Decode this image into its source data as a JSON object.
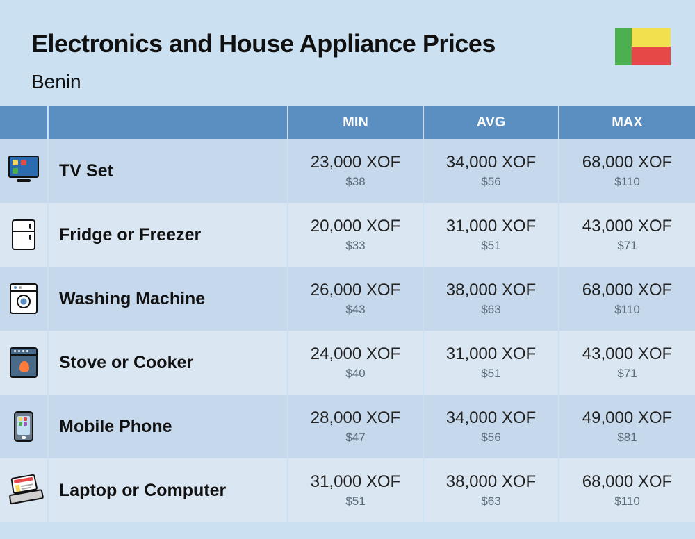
{
  "header": {
    "title": "Electronics and House Appliance Prices",
    "country": "Benin"
  },
  "flag": {
    "colors": {
      "green": "#4caf50",
      "yellow": "#f3e04f",
      "red": "#e64848"
    }
  },
  "table": {
    "type": "table",
    "columns": [
      "MIN",
      "AVG",
      "MAX"
    ],
    "header_bg": "#5b8fc2",
    "header_text_color": "#ffffff",
    "row_bg_odd": "#c6d9ec",
    "row_bg_even": "#dae7f2",
    "border_color": "#cbe0f0",
    "xof_text_color": "#222222",
    "usd_text_color": "#5b6b7a",
    "name_text_color": "#111111",
    "xof_fontsize": 24,
    "usd_fontsize": 17,
    "name_fontsize": 25,
    "header_fontsize": 20,
    "rows": [
      {
        "icon": "tv-icon",
        "name": "TV Set",
        "min": {
          "xof": "23,000 XOF",
          "usd": "$38"
        },
        "avg": {
          "xof": "34,000 XOF",
          "usd": "$56"
        },
        "max": {
          "xof": "68,000 XOF",
          "usd": "$110"
        }
      },
      {
        "icon": "fridge-icon",
        "name": "Fridge or Freezer",
        "min": {
          "xof": "20,000 XOF",
          "usd": "$33"
        },
        "avg": {
          "xof": "31,000 XOF",
          "usd": "$51"
        },
        "max": {
          "xof": "43,000 XOF",
          "usd": "$71"
        }
      },
      {
        "icon": "washing-machine-icon",
        "name": "Washing Machine",
        "min": {
          "xof": "26,000 XOF",
          "usd": "$43"
        },
        "avg": {
          "xof": "38,000 XOF",
          "usd": "$63"
        },
        "max": {
          "xof": "68,000 XOF",
          "usd": "$110"
        }
      },
      {
        "icon": "stove-icon",
        "name": "Stove or Cooker",
        "min": {
          "xof": "24,000 XOF",
          "usd": "$40"
        },
        "avg": {
          "xof": "31,000 XOF",
          "usd": "$51"
        },
        "max": {
          "xof": "43,000 XOF",
          "usd": "$71"
        }
      },
      {
        "icon": "phone-icon",
        "name": "Mobile Phone",
        "min": {
          "xof": "28,000 XOF",
          "usd": "$47"
        },
        "avg": {
          "xof": "34,000 XOF",
          "usd": "$56"
        },
        "max": {
          "xof": "49,000 XOF",
          "usd": "$81"
        }
      },
      {
        "icon": "laptop-icon",
        "name": "Laptop or Computer",
        "min": {
          "xof": "31,000 XOF",
          "usd": "$51"
        },
        "avg": {
          "xof": "38,000 XOF",
          "usd": "$63"
        },
        "max": {
          "xof": "68,000 XOF",
          "usd": "$110"
        }
      }
    ]
  }
}
